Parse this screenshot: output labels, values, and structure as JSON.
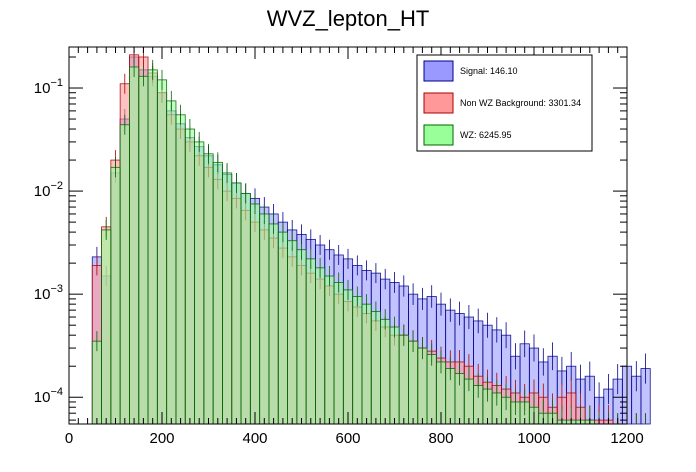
{
  "chart_data": {
    "type": "histogram",
    "title": "WVZ_lepton_HT",
    "xlabel": "",
    "ylabel": "",
    "xlim": [
      0,
      1200
    ],
    "ylim_log": [
      5.5e-05,
      0.25
    ],
    "yscale": "log",
    "bin_width": 20,
    "x_start": 50,
    "x_ticks": [
      0,
      200,
      400,
      600,
      800,
      1000,
      1200
    ],
    "y_ticks": [
      {
        "value": 0.1,
        "mantissa": "10",
        "exponent": "−1"
      },
      {
        "value": 0.01,
        "mantissa": "10",
        "exponent": "−2"
      },
      {
        "value": 0.001,
        "mantissa": "10",
        "exponent": "−3"
      },
      {
        "value": 0.0001,
        "mantissa": "10",
        "exponent": "−4"
      }
    ],
    "legend_position": "top-right",
    "series": [
      {
        "name": "Signal",
        "legend_label": "Signal: 146.10",
        "color": "#9999ff",
        "edge": "#00008b",
        "values": [
          0.0023,
          0.0015,
          0.015,
          0.05,
          0.2,
          0.15,
          0.13,
          0.09,
          0.06,
          0.045,
          0.033,
          0.027,
          0.022,
          0.018,
          0.0145,
          0.012,
          0.0095,
          0.0085,
          0.007,
          0.006,
          0.005,
          0.0042,
          0.0038,
          0.0034,
          0.003,
          0.0027,
          0.0024,
          0.0022,
          0.0019,
          0.0017,
          0.0016,
          0.0014,
          0.0013,
          0.0012,
          0.001,
          0.0009,
          0.00095,
          0.0008,
          0.0007,
          0.00065,
          0.0006,
          0.00055,
          0.0005,
          0.00045,
          0.0004,
          0.00025,
          0.00033,
          0.0003,
          0.00022,
          0.00025,
          0.00018,
          0.0002,
          0.00015,
          0.00016,
          0.0001,
          0.00012,
          0.00015,
          0.0002,
          0.00016,
          0.00019
        ]
      },
      {
        "name": "Non WZ Background",
        "legend_label": "Non WZ Background: 3301.34",
        "color": "#ff9999",
        "edge": "#aa0000",
        "values": [
          0.0019,
          0.0045,
          0.02,
          0.11,
          0.21,
          0.2,
          0.14,
          0.09,
          0.055,
          0.04,
          0.03,
          0.022,
          0.017,
          0.013,
          0.01,
          0.0085,
          0.0065,
          0.005,
          0.0042,
          0.0035,
          0.0028,
          0.0023,
          0.0019,
          0.0016,
          0.0014,
          0.0012,
          0.001,
          0.00085,
          0.00075,
          0.00065,
          0.00055,
          0.00048,
          0.0004,
          0.0004,
          0.00035,
          0.0003,
          0.00028,
          0.00024,
          0.00022,
          0.00022,
          0.0002,
          0.00016,
          0.00014,
          0.00013,
          0.00012,
          0.00011,
          0.0001,
          0.00011,
          0.0001,
          8e-05,
          0.0001,
          0.00011,
          8e-05,
          6e-05,
          6e-05,
          6e-05,
          5e-05,
          5e-05,
          5e-05,
          5e-05
        ]
      },
      {
        "name": "WZ",
        "legend_label": "WZ: 6245.95",
        "color": "#99ff99",
        "edge": "#006400",
        "values": [
          0.00035,
          0.0042,
          0.017,
          0.044,
          0.16,
          0.13,
          0.15,
          0.12,
          0.075,
          0.055,
          0.04,
          0.03,
          0.023,
          0.019,
          0.015,
          0.012,
          0.0095,
          0.0075,
          0.006,
          0.0048,
          0.004,
          0.0033,
          0.0027,
          0.0022,
          0.0018,
          0.0015,
          0.0013,
          0.0011,
          0.00095,
          0.0008,
          0.00068,
          0.00057,
          0.00048,
          0.0004,
          0.00035,
          0.0003,
          0.00026,
          0.00022,
          0.00019,
          0.00017,
          0.00015,
          0.00013,
          0.00012,
          0.00011,
          0.0001,
          9e-05,
          9e-05,
          8e-05,
          7e-05,
          7e-05,
          6e-05,
          6e-05,
          6e-05,
          6e-05,
          5e-05,
          5e-05,
          5e-05,
          5e-05,
          5e-05,
          5e-05
        ]
      }
    ]
  }
}
